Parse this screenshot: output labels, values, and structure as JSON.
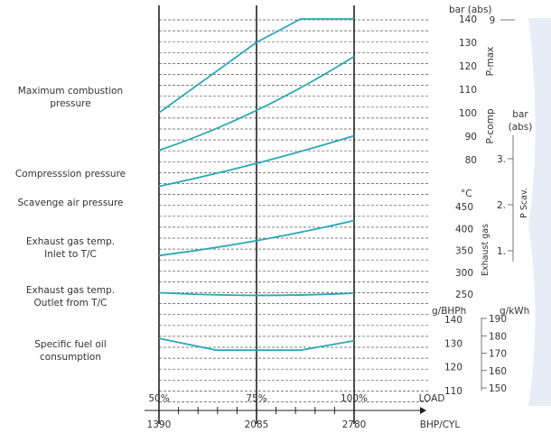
{
  "chart_data": {
    "type": "line",
    "colors": {
      "series": "#2aa7b8",
      "grid": "#444444",
      "text": "#333333",
      "watermark": "#e6edf7"
    },
    "x": {
      "load_ticks": [
        "50%",
        "75%",
        "100%"
      ],
      "load_label": "LOAD",
      "bhp_ticks": [
        "1390",
        "2085",
        "2780"
      ],
      "bhp_label": "BHP/CYL",
      "range": [
        1390,
        2780
      ]
    },
    "row_labels": [
      {
        "lines": [
          "Maximum combustion",
          "pressure"
        ]
      },
      {
        "lines": [
          "Compresssion pressure"
        ]
      },
      {
        "lines": [
          "Scavenge air pressure"
        ]
      },
      {
        "lines": [
          "Exhaust gas temp.",
          "Inlet to T/C"
        ]
      },
      {
        "lines": [
          "Exhaust gas temp.",
          "Outlet from T/C"
        ]
      },
      {
        "lines": [
          "Specific fuel oil",
          "consumption"
        ]
      }
    ],
    "scales": {
      "pressure": {
        "unit": "bar (abs)",
        "ticks": [
          "140",
          "130",
          "120",
          "110",
          "100",
          "90",
          "80"
        ],
        "range": [
          80,
          140
        ],
        "labels": [
          "P-max",
          "P-comp"
        ]
      },
      "scavenge": {
        "unit_lines": [
          "bar",
          "(abs)"
        ],
        "ticks": [
          "3",
          "2",
          "1"
        ],
        "range": [
          1,
          3
        ],
        "label": "P Scav."
      },
      "extra_tick_9": "9",
      "exhaust": {
        "unit": "°C",
        "ticks": [
          "450",
          "400",
          "350",
          "300",
          "250"
        ],
        "range": [
          250,
          450
        ],
        "label": "Exhaust gas"
      },
      "fuel_bhp": {
        "unit": "g/BHPh",
        "ticks": [
          "140",
          "130",
          "120",
          "110"
        ],
        "range": [
          110,
          140
        ]
      },
      "fuel_kwh": {
        "unit": "g/kWh",
        "ticks": [
          "190",
          "180",
          "170",
          "160",
          "150"
        ],
        "range": [
          150,
          190
        ]
      }
    },
    "series": [
      {
        "name": "P-max",
        "axis": "pressure",
        "x": [
          1390,
          2085,
          2400,
          2780
        ],
        "y": [
          100,
          130,
          140,
          140
        ]
      },
      {
        "name": "P-comp",
        "axis": "pressure",
        "x": [
          1390,
          2085,
          2780
        ],
        "y": [
          84,
          101,
          124
        ]
      },
      {
        "name": "P Scav.",
        "axis": "scavenge",
        "x": [
          1390,
          2085,
          2780
        ],
        "y": [
          2.4,
          2.9,
          3.5
        ]
      },
      {
        "name": "Exhaust gas inlet to T/C",
        "axis": "exhaust",
        "x": [
          1390,
          2085,
          2780
        ],
        "y": [
          338,
          372,
          418
        ]
      },
      {
        "name": "Exhaust gas outlet from T/C",
        "axis": "exhaust",
        "x": [
          1390,
          2085,
          2780
        ],
        "y": [
          253,
          247,
          252
        ]
      },
      {
        "name": "Specific fuel oil consumption",
        "axis": "fuel_bhp",
        "x": [
          1390,
          1800,
          2085,
          2400,
          2780
        ],
        "y": [
          132,
          127,
          127,
          127,
          131
        ]
      }
    ]
  }
}
